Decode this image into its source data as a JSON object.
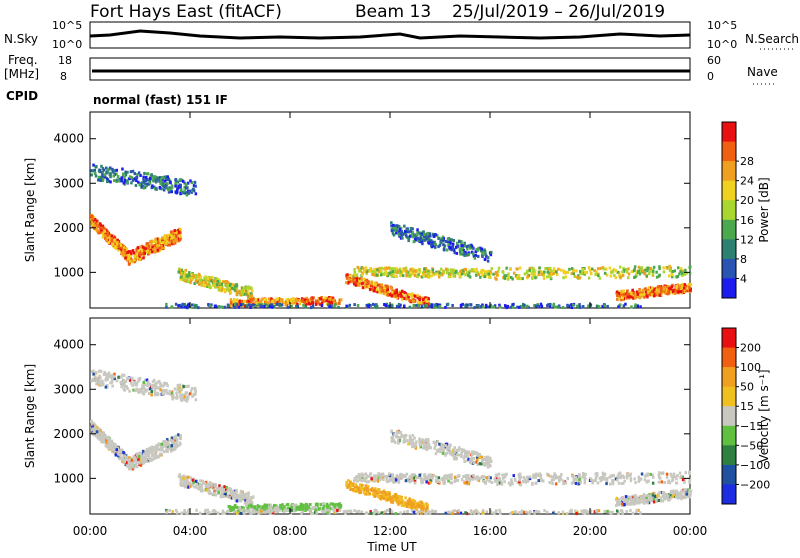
{
  "header": {
    "station": "Fort Hays East (fitACF)",
    "beam": "Beam 13",
    "dates": "25/Jul/2019 – 26/Jul/2019"
  },
  "top_panels": {
    "nsky_label": "N.Sky",
    "nsky_ticks": [
      "10^5",
      "10^0"
    ],
    "nsearch_label": "N.Search",
    "nsearch_ticks": [
      "10^5",
      "10^0"
    ],
    "freq_label_1": "Freq.",
    "freq_label_2": "[MHz]",
    "freq_ticks": [
      "18",
      "8"
    ],
    "nave_label": "Nave",
    "nave_ticks": [
      "60",
      "0"
    ],
    "cpid_label": "CPID",
    "cpid_value": "normal (fast) 151 IF"
  },
  "chart_data": [
    {
      "type": "heatmap",
      "name": "power",
      "ylabel": "Slant Range [km]",
      "ylim": [
        200,
        4600
      ],
      "yticks": [
        "1000",
        "2000",
        "3000",
        "4000"
      ],
      "colorbar_label": "Power [dB]",
      "colorbar_ticks": [
        "4",
        "8",
        "12",
        "16",
        "20",
        "24",
        "28"
      ],
      "colors": [
        "#1c1cf0",
        "#2a54b4",
        "#2e8070",
        "#4ca84c",
        "#a8d830",
        "#f0d020",
        "#f0a020",
        "#f06010",
        "#e81010"
      ]
    },
    {
      "type": "heatmap",
      "name": "velocity",
      "ylabel": "Slant Range [km]",
      "ylim": [
        200,
        4600
      ],
      "yticks": [
        "1000",
        "2000",
        "3000",
        "4000"
      ],
      "xlabel": "Time UT",
      "xticks": [
        "00:00",
        "04:00",
        "08:00",
        "12:00",
        "16:00",
        "20:00",
        "00:00"
      ],
      "colorbar_label": "Velocity [m s⁻¹]",
      "colorbar_ticks": [
        "200",
        "100",
        "50",
        "15",
        "−15",
        "−50",
        "−100",
        "−200"
      ],
      "colors": [
        "#1c2ce0",
        "#2050a0",
        "#2e8040",
        "#60c040",
        "#c8c8c0",
        "#f0c020",
        "#f0a020",
        "#f06010",
        "#e81010"
      ]
    }
  ]
}
